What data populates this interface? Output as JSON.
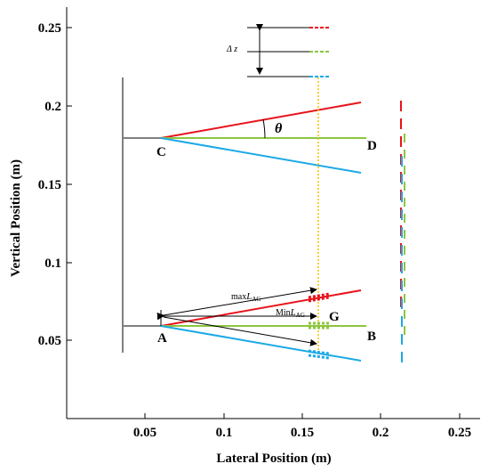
{
  "chart_data": {
    "type": "diagram",
    "xlabel": "Lateral Position (m)",
    "ylabel": "Vertical Position (m)",
    "xlim": [
      0,
      0.26
    ],
    "ylim": [
      0,
      0.26
    ],
    "xticks": [
      "0.05",
      "0.1",
      "0.15",
      "0.2",
      "0.25"
    ],
    "yticks": [
      "0.05",
      "0.1",
      "0.15",
      "0.2",
      "0.25"
    ],
    "points": {
      "A": "A",
      "B": "B",
      "C": "C",
      "D": "D",
      "G": "G"
    },
    "annotations": {
      "theta": "θ",
      "delta_z": "Δ z",
      "max_label_main": "max",
      "max_label_italic": "L",
      "max_label_sub": "AG",
      "min_label_main": "Min",
      "min_label_italic": "L",
      "min_label_sub": "AG"
    },
    "colors": {
      "upper": "#e8141b",
      "middle": "#8cc63f",
      "lower": "#1ca9e6",
      "guide": "#f2c200",
      "pole": "#808080"
    }
  }
}
